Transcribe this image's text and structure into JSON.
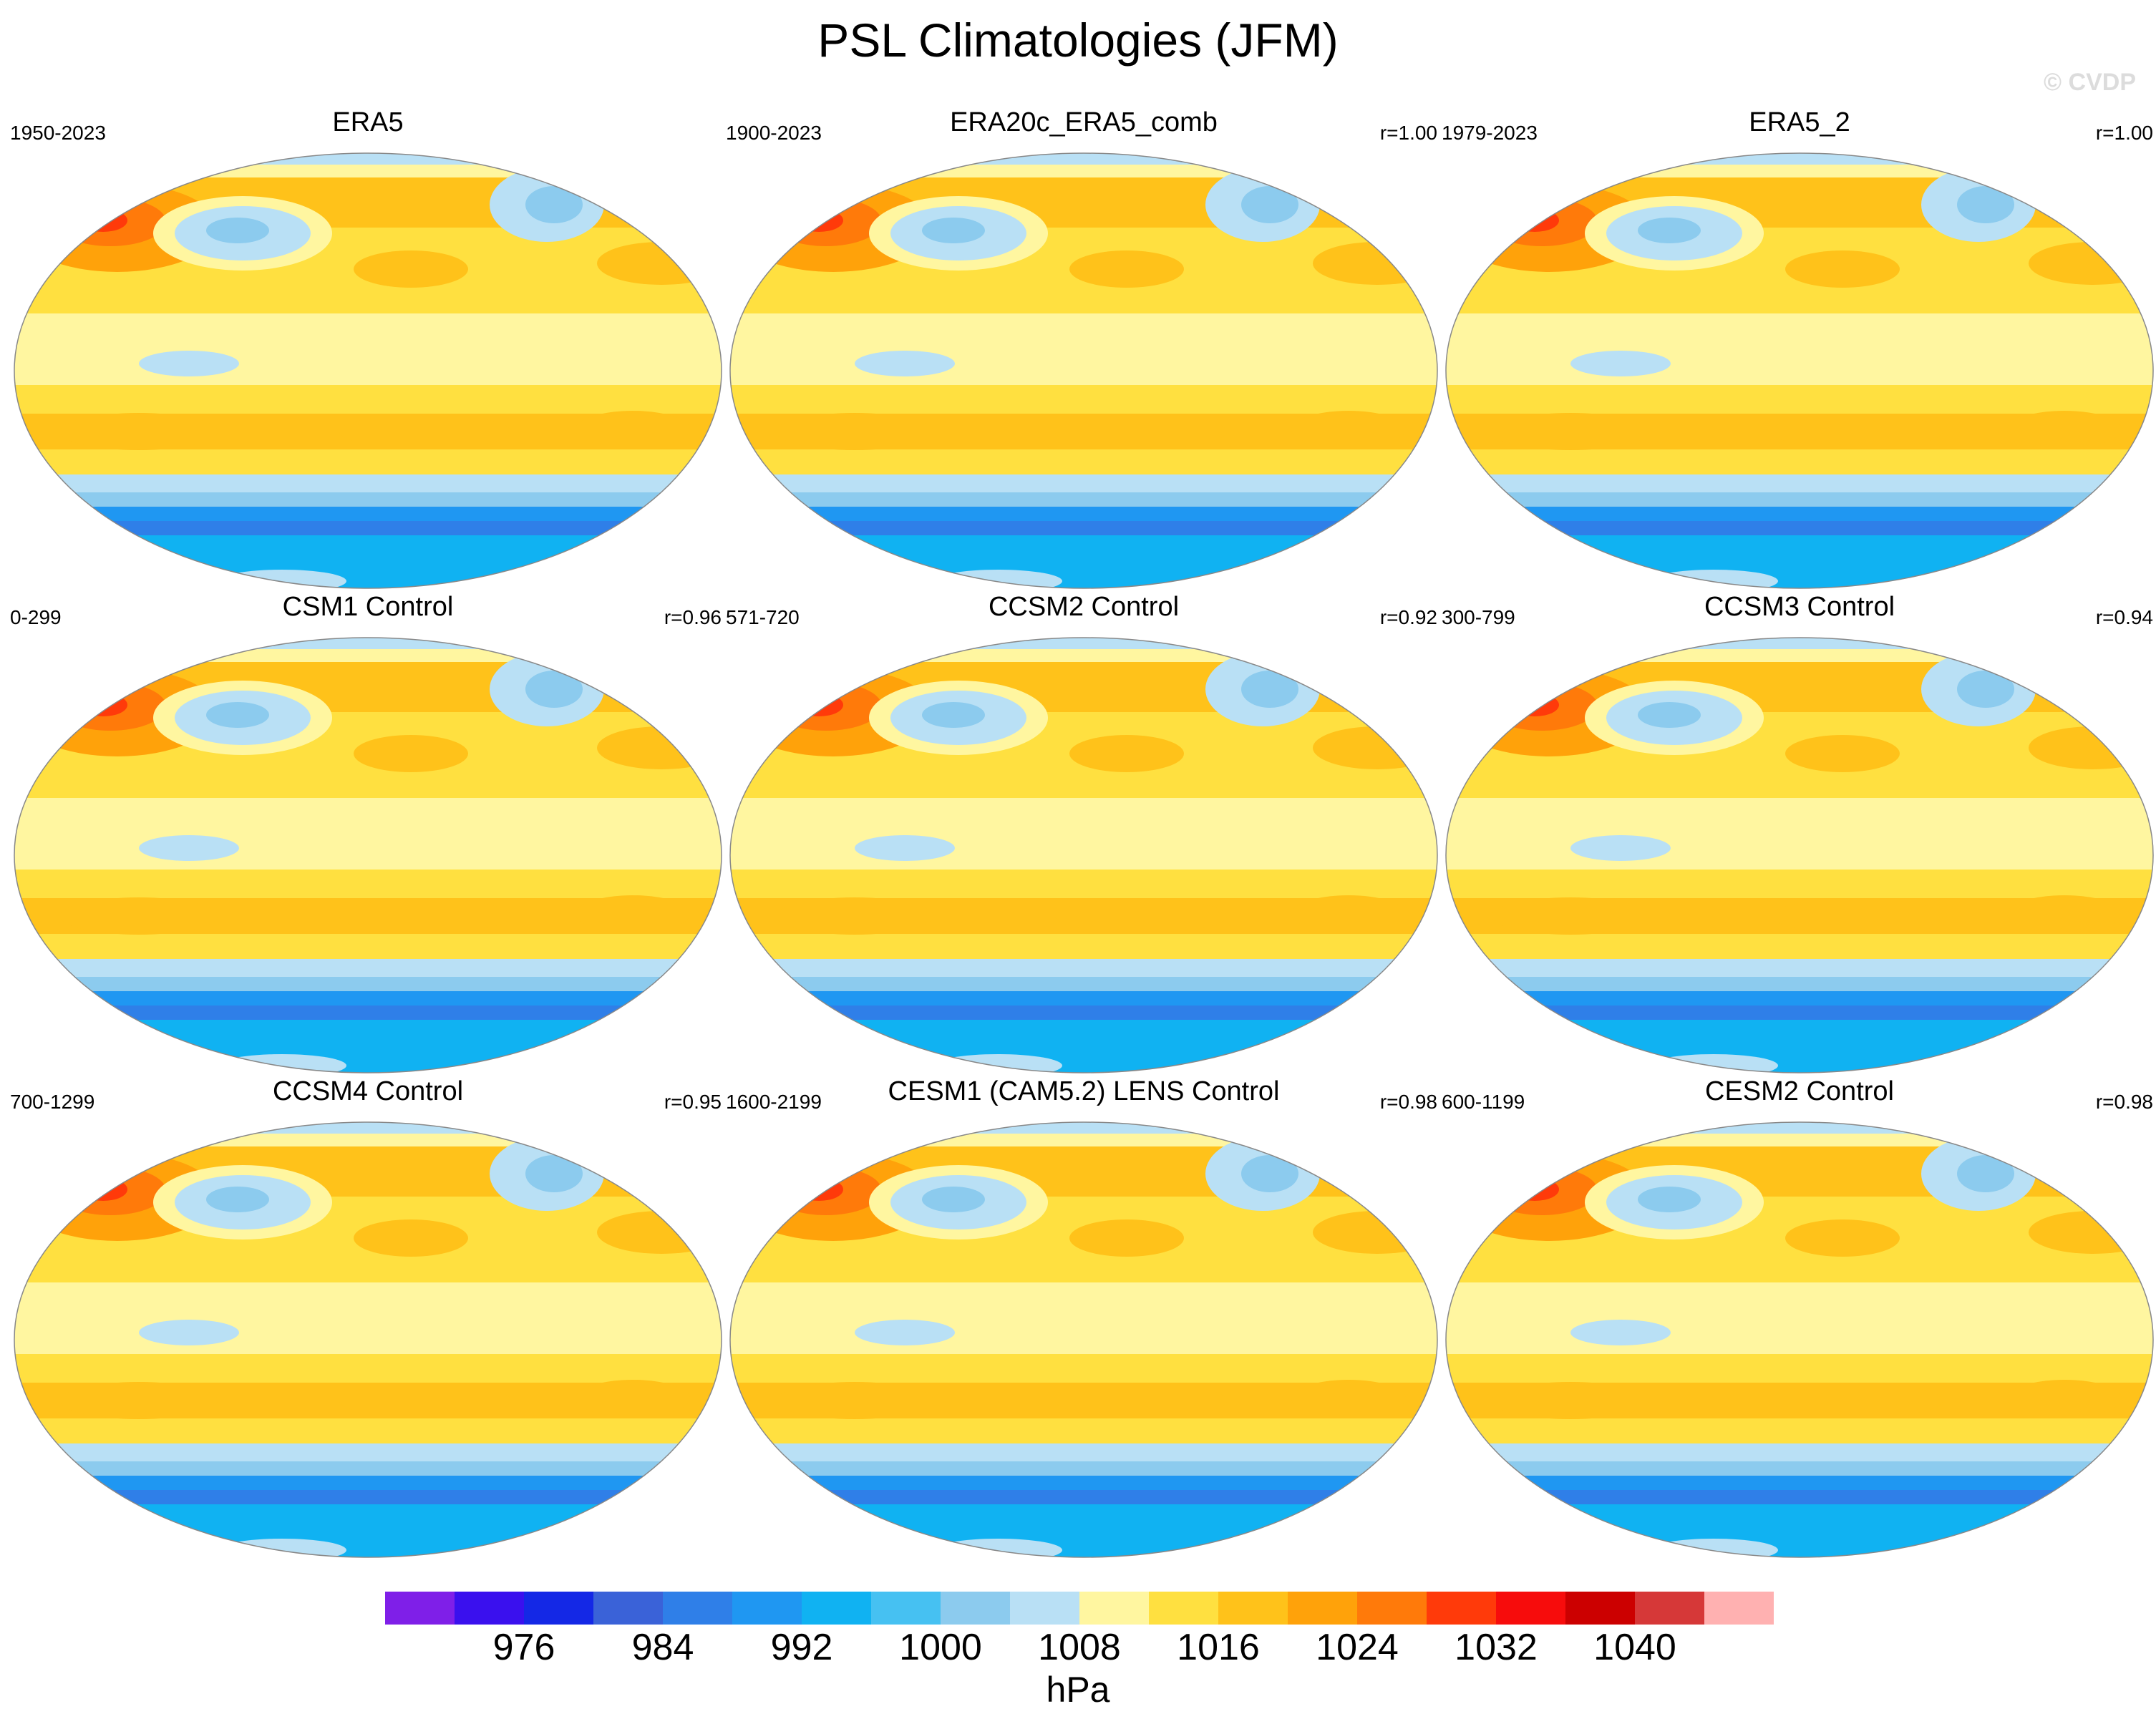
{
  "title": "PSL Climatologies (JFM)",
  "watermark": "© CVDP",
  "panels": [
    {
      "title": "ERA5",
      "years": "1950-2023",
      "r": ""
    },
    {
      "title": "ERA20c_ERA5_comb",
      "years": "1900-2023",
      "r": "r=1.00"
    },
    {
      "title": "ERA5_2",
      "years": "1979-2023",
      "r": "r=1.00"
    },
    {
      "title": "CSM1 Control",
      "years": "0-299",
      "r": "r=0.96"
    },
    {
      "title": "CCSM2 Control",
      "years": "571-720",
      "r": "r=0.92"
    },
    {
      "title": "CCSM3 Control",
      "years": "300-799",
      "r": "r=0.94"
    },
    {
      "title": "CCSM4 Control",
      "years": "700-1299",
      "r": "r=0.95"
    },
    {
      "title": "CESM1 (CAM5.2) LENS Control",
      "years": "1600-2199",
      "r": "r=0.98"
    },
    {
      "title": "CESM2 Control",
      "years": "600-1199",
      "r": "r=0.98"
    }
  ],
  "colorbar": {
    "colors": [
      "#7f1fe8",
      "#3a10ee",
      "#1428e6",
      "#3a62d8",
      "#2f7fe8",
      "#1f97f2",
      "#10b2f2",
      "#46c1f2",
      "#8ccbee",
      "#b9e0f5",
      "#fff6a0",
      "#ffe040",
      "#ffc21a",
      "#ffa20a",
      "#ff7a0a",
      "#ff3a0a",
      "#f70c0c",
      "#cc0000",
      "#d63838",
      "#ffb1b1"
    ],
    "tick_labels": [
      "976",
      "984",
      "992",
      "1000",
      "1008",
      "1016",
      "1024",
      "1032",
      "1040"
    ],
    "units": "hPa"
  }
}
